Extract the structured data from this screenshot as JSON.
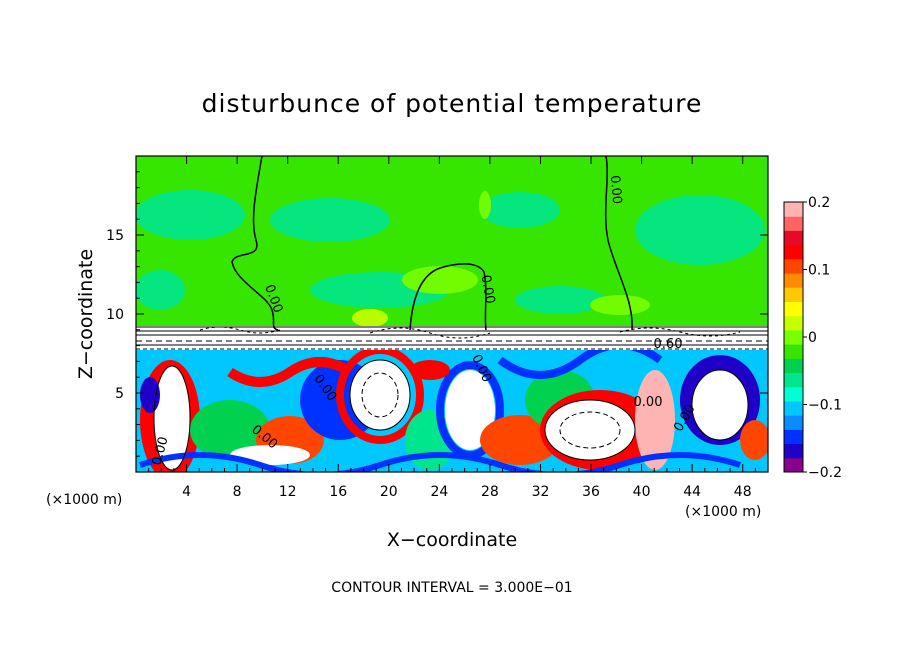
{
  "chart_data": {
    "type": "heatmap",
    "title": "disturbunce of potential temperature",
    "xlabel": "X−coordinate",
    "ylabel": "Z−coordinate",
    "x_unit": "(×1000 m)",
    "x_unit_right": "(×1000 m)",
    "xlim": [
      0,
      50
    ],
    "ylim": [
      0,
      20
    ],
    "x_ticks": [
      "4",
      "8",
      "12",
      "16",
      "20",
      "24",
      "28",
      "32",
      "36",
      "40",
      "44",
      "48"
    ],
    "x_tick_values": [
      4,
      8,
      12,
      16,
      20,
      24,
      28,
      32,
      36,
      40,
      44,
      48
    ],
    "y_ticks": [
      "5",
      "10",
      "15"
    ],
    "y_tick_values": [
      5,
      10,
      15
    ],
    "colorbar": {
      "min": -0.2,
      "max": 0.2,
      "tick_labels": [
        "0.2",
        "0.1",
        "0",
        "−0.1",
        "−0.2"
      ],
      "tick_values": [
        0.2,
        0.1,
        0,
        -0.1,
        -0.2
      ],
      "colors": [
        "#8a008a",
        "#1e00c8",
        "#0032ff",
        "#0a8cff",
        "#00c8ff",
        "#00ffd2",
        "#00e68c",
        "#00d250",
        "#37e600",
        "#78ff00",
        "#c8ff00",
        "#ffff00",
        "#ffc800",
        "#ff8c00",
        "#ff4600",
        "#ff0000",
        "#e60a28",
        "#ff6464",
        "#ffb4b4"
      ]
    },
    "contour_labels": [
      "0.00",
      "0.00",
      "0.00",
      "0.00",
      "0.00",
      "0.00",
      "0.00",
      "0.00",
      "0.00",
      "0.60"
    ],
    "footer": "CONTOUR INTERVAL = 3.000E−01"
  }
}
